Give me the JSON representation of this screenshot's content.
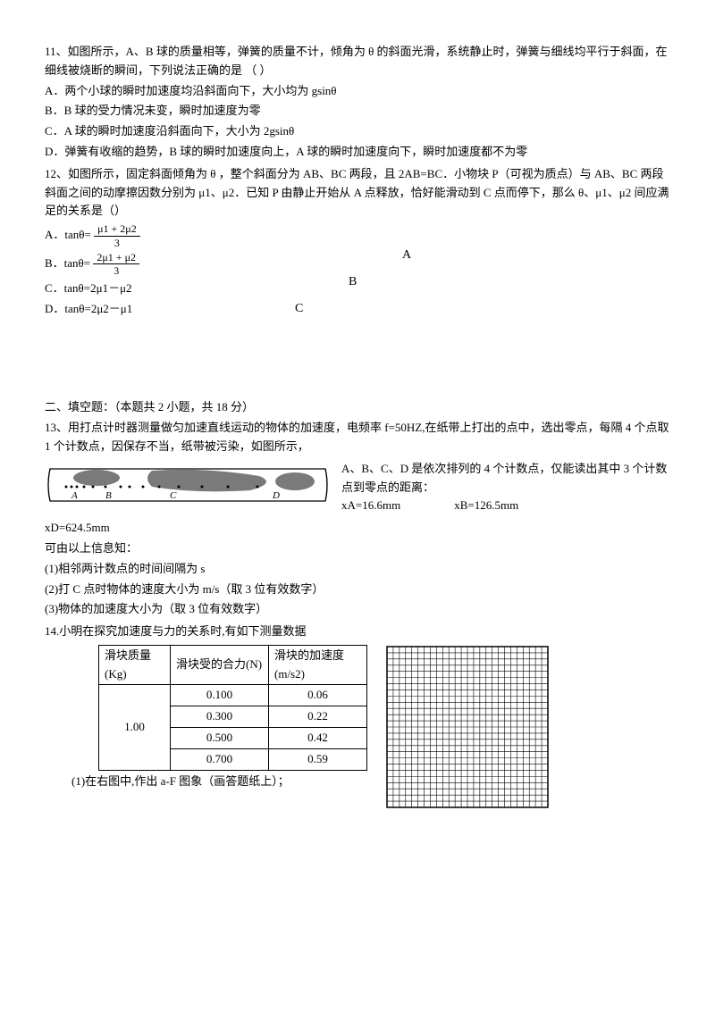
{
  "q11": {
    "stem": "11、如图所示，A、B 球的质量相等，弹簧的质量不计，倾角为 θ 的斜面光滑，系统静止时，弹簧与细线均平行于斜面，在细线被烧断的瞬间，下列说法正确的是 （    ）",
    "optA": "A．两个小球的瞬时加速度均沿斜面向下，大小均为 gsinθ",
    "optB": "B．B 球的受力情况未变，瞬时加速度为零",
    "optC": "C．A 球的瞬时加速度沿斜面向下，大小为 2gsinθ",
    "optD": "D．弹簧有收缩的趋势，B 球的瞬时加速度向上，A 球的瞬时加速度向下，瞬时加速度都不为零"
  },
  "q12": {
    "stem": "12、如图所示，固定斜面倾角为 θ ，整个斜面分为 AB、BC 两段，且 2AB=BC．小物块 P（可视为质点）与 AB、BC 两段斜面之间的动摩擦因数分别为 μ1、μ2．已知 P 由静止开始从 A 点释放，恰好能滑动到 C 点而停下，那么 θ、μ1、μ2 间应满足的关系是（）",
    "optA_label": "A．tanθ=",
    "optA_num": "μ1 + 2μ2",
    "optA_den": "3",
    "optB_label": "B．tanθ=",
    "optB_num": "2μ1 + μ2",
    "optB_den": "3",
    "optC": "C．tanθ=2μ1－μ2",
    "optD": "D．tanθ=2μ2－μ1",
    "diagA": "A",
    "diagB": "B",
    "diagC": "C"
  },
  "section2": "二、填空题：（本题共 2 小题，共 18 分）",
  "q13": {
    "stem1": "13、用打点计时器测量做匀加速直线运动的物体的加速度，电频率 f=50HZ,在纸带上打出的点中，选出零点，每隔 4 个点取 1 个计数点，因保存不当，纸带被污染，如图所示，",
    "right1": "A、B、C、D 是依次排列的 4 个计数点，仅能读出其中 3 个计数点到零点的距离：",
    "xA": "xA=16.6mm",
    "xB": "xB=126.5mm",
    "xD": "xD=624.5mm",
    "line1": "可由以上信息知：",
    "line2": "(1)相邻两计数点的时间间隔为 s",
    "line3": "(2)打 C 点时物体的速度大小为 m/s（取 3 位有效数字）",
    "line4": "(3)物体的加速度大小为（取 3 位有效数字）",
    "tape_A": "A",
    "tape_B": "B",
    "tape_C": "C",
    "tape_D": "D"
  },
  "q14": {
    "stem": "14.小明在探究加速度与力的关系时,有如下测量数据",
    "h1": "滑块质量(Kg)",
    "h2": "滑块受的合力(N)",
    "h3": "滑块的加速度(m/s2)",
    "mass": "1.00",
    "f1": "0.100",
    "a1": "0.06",
    "f2": "0.300",
    "a2": "0.22",
    "f3": "0.500",
    "a3": "0.42",
    "f4": "0.700",
    "a4": "0.59",
    "sub1": "(1)在右图中,作出 a-F 图象（画答题纸上）；"
  },
  "style": {
    "grid_cells": 26,
    "grid_size": 180,
    "grid_color": "#000000",
    "tape_width": 320,
    "tape_height": 50
  }
}
